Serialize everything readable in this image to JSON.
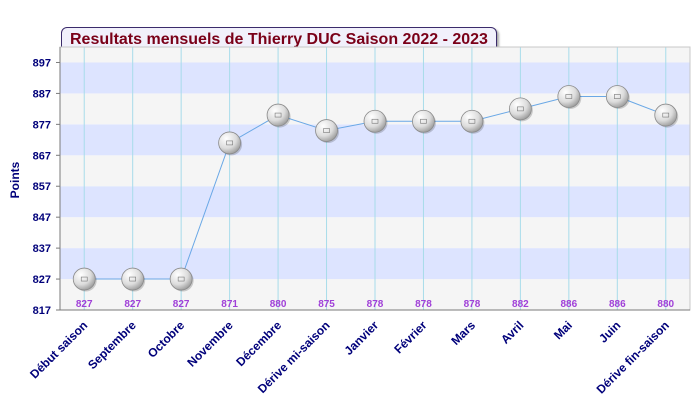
{
  "chart_data": {
    "type": "line",
    "title": "Resultats mensuels de Thierry DUC Saison 2022 - 2023",
    "xlabel": "",
    "ylabel": "Points",
    "ylim": [
      817,
      902
    ],
    "yticks": [
      817,
      827,
      837,
      847,
      857,
      867,
      877,
      887,
      897
    ],
    "categories": [
      "Début saison",
      "Septembre",
      "Octobre",
      "Novembre",
      "Décembre",
      "Dérive mi-saison",
      "Janvier",
      "Février",
      "Mars",
      "Avril",
      "Mai",
      "Juin",
      "Dérive fin-saison"
    ],
    "series": [
      {
        "values": [
          827,
          827,
          827,
          871,
          880,
          875,
          878,
          878,
          878,
          882,
          886,
          886,
          880
        ]
      }
    ],
    "data_labels": [
      "827",
      "827",
      "827",
      "871",
      "880",
      "875",
      "878",
      "878",
      "878",
      "882",
      "886",
      "886",
      "880"
    ],
    "grid": true,
    "colors": {
      "band_light": "#f5f5f5",
      "band_blue": "#dde4ff",
      "vertical_grid": "#a8dcea",
      "line": "#6aa8e6",
      "marker_fill": "#e2e2e2",
      "marker_stroke": "#8a8a8a",
      "tick_label": "#00007a",
      "value_label": "#a040d8",
      "title_text": "#7a0018"
    }
  }
}
